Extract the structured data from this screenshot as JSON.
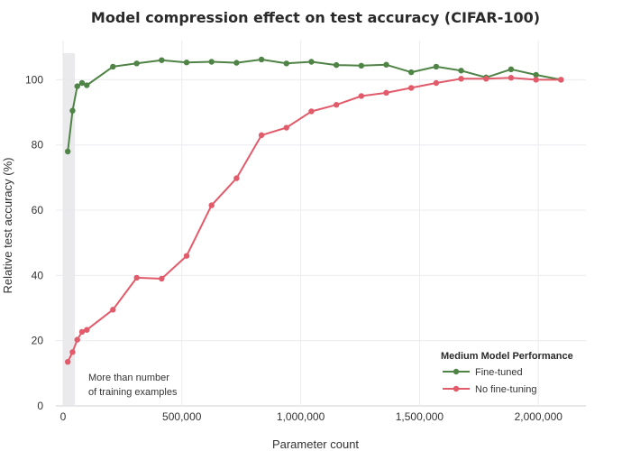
{
  "chart_data": {
    "type": "line",
    "title": "Model compression effect on test accuracy (CIFAR-100)",
    "xlabel": "Parameter count",
    "ylabel": "Relative test accuracy (%)",
    "xlim": [
      -30000,
      2200000
    ],
    "ylim": [
      0,
      112
    ],
    "xticks": [
      0,
      500000,
      1000000,
      1500000,
      2000000
    ],
    "xtick_labels": [
      "0",
      "500,000",
      "1,000,000",
      "1,500,000",
      "2,000,000"
    ],
    "yticks": [
      0,
      20,
      40,
      60,
      80,
      100
    ],
    "ytick_labels": [
      "0",
      "20",
      "40",
      "60",
      "80",
      "100"
    ],
    "grid": true,
    "legend_title": "Medium Model Performance",
    "legend_position": "bottom-right",
    "shaded_region": {
      "x": [
        0,
        50000
      ]
    },
    "annotation": [
      "More than number",
      "of training examples"
    ],
    "series": [
      {
        "name": "Fine-tuned",
        "color": "#4f8446",
        "x": [
          20000,
          40000,
          60000,
          80000,
          100000,
          210000,
          310000,
          415000,
          520000,
          625000,
          730000,
          835000,
          940000,
          1045000,
          1150000,
          1255000,
          1360000,
          1465000,
          1570000,
          1675000,
          1780000,
          1885000,
          1990000,
          2095000
        ],
        "y": [
          78,
          90.5,
          98,
          99,
          98.3,
          104,
          105,
          106,
          105.3,
          105.5,
          105.2,
          106.2,
          105,
          105.5,
          104.5,
          104.3,
          104.6,
          102.3,
          104,
          102.8,
          100.7,
          103.2,
          101.5,
          100
        ]
      },
      {
        "name": "No fine-tuning",
        "color": "#e25b6b",
        "x": [
          20000,
          40000,
          60000,
          80000,
          100000,
          210000,
          310000,
          415000,
          520000,
          625000,
          730000,
          835000,
          940000,
          1045000,
          1150000,
          1255000,
          1360000,
          1465000,
          1570000,
          1675000,
          1780000,
          1885000,
          1990000,
          2095000
        ],
        "y": [
          13.5,
          16.5,
          20.3,
          22.7,
          23.3,
          29.5,
          39.3,
          39,
          46,
          61.5,
          69.8,
          83,
          85.3,
          90.3,
          92.3,
          95,
          96,
          97.5,
          99,
          100.3,
          100.3,
          100.6,
          100,
          100
        ]
      }
    ]
  }
}
